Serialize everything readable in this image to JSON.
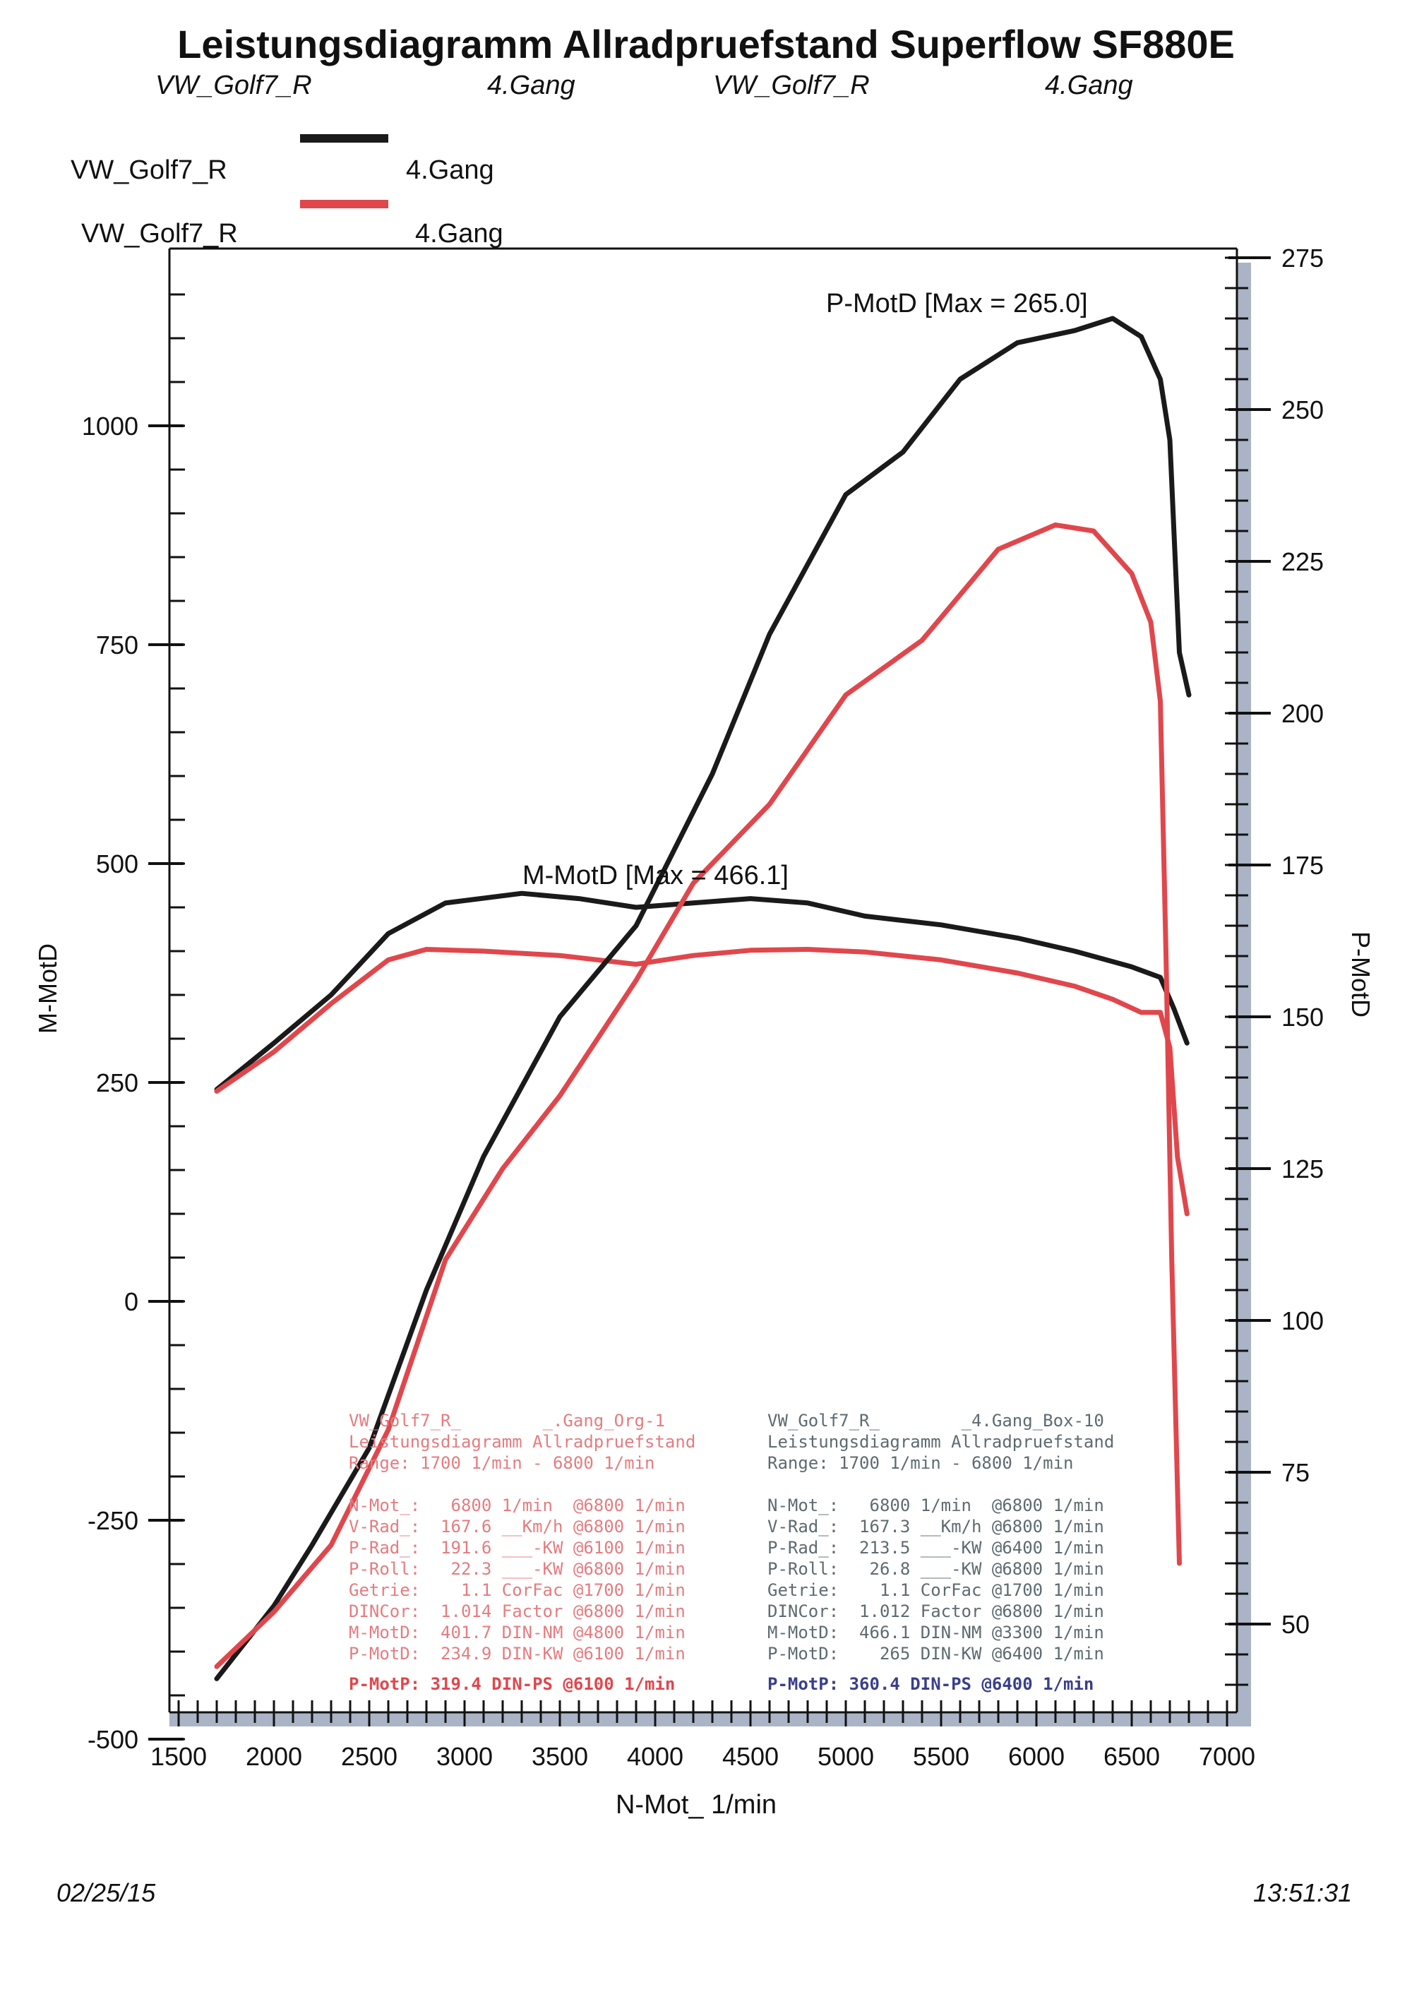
{
  "title": "Leistungsdiagramm Allradpruefstand Superflow SF880E",
  "subtitle": [
    "VW_Golf7_R",
    "4.Gang",
    "VW_Golf7_R",
    "4.Gang"
  ],
  "legend": [
    {
      "name": "VW_Golf7_R",
      "gear": "4.Gang",
      "color": "#1a1a1a"
    },
    {
      "name": "VW_Golf7_R",
      "gear": "4.Gang",
      "color": "#e0474c"
    }
  ],
  "chart_data": {
    "type": "line",
    "xlabel": "N-Mot_ 1/min",
    "ylabel_left": "M-MotD",
    "ylabel_right": "P-MotD",
    "xlim": [
      1500,
      7000
    ],
    "ylim_left": [
      -500,
      1250
    ],
    "ylim_right": [
      25,
      275
    ],
    "xticks": [
      "1500",
      "2000",
      "2500",
      "3000",
      "3500",
      "4000",
      "4500",
      "5000",
      "5500",
      "6000",
      "6500",
      "7000"
    ],
    "yticks_left": [
      "1000",
      "750",
      "500",
      "250",
      "0",
      "-250",
      "-500"
    ],
    "yticks_right": [
      "275",
      "250",
      "225",
      "200",
      "175",
      "150",
      "125",
      "100",
      "75",
      "50"
    ],
    "annotations": {
      "power_max": "P-MotD [Max = 265.0]",
      "torque_max": "M-MotD [Max = 466.1]"
    },
    "series": [
      {
        "color": "#1a1a1a",
        "axis": "left",
        "kind": "torque",
        "points": [
          [
            1700,
            242
          ],
          [
            2000,
            295
          ],
          [
            2300,
            350
          ],
          [
            2600,
            420
          ],
          [
            2900,
            455
          ],
          [
            3300,
            466
          ],
          [
            3600,
            460
          ],
          [
            3900,
            450
          ],
          [
            4200,
            455
          ],
          [
            4500,
            460
          ],
          [
            4800,
            455
          ],
          [
            5100,
            440
          ],
          [
            5500,
            430
          ],
          [
            5900,
            415
          ],
          [
            6200,
            400
          ],
          [
            6500,
            382
          ],
          [
            6650,
            370
          ],
          [
            6720,
            335
          ],
          [
            6790,
            295
          ]
        ]
      },
      {
        "color": "#e0474c",
        "axis": "left",
        "kind": "torque",
        "points": [
          [
            1700,
            240
          ],
          [
            2000,
            285
          ],
          [
            2300,
            340
          ],
          [
            2600,
            390
          ],
          [
            2800,
            402
          ],
          [
            3100,
            400
          ],
          [
            3500,
            395
          ],
          [
            3900,
            385
          ],
          [
            4200,
            395
          ],
          [
            4500,
            401
          ],
          [
            4800,
            402
          ],
          [
            5100,
            399
          ],
          [
            5500,
            390
          ],
          [
            5900,
            375
          ],
          [
            6200,
            360
          ],
          [
            6400,
            345
          ],
          [
            6550,
            330
          ],
          [
            6650,
            330
          ],
          [
            6700,
            290
          ],
          [
            6740,
            165
          ],
          [
            6790,
            100
          ]
        ]
      },
      {
        "color": "#1a1a1a",
        "axis": "right",
        "kind": "power",
        "points": [
          [
            1700,
            41
          ],
          [
            2000,
            53
          ],
          [
            2200,
            63
          ],
          [
            2500,
            79
          ],
          [
            2800,
            105
          ],
          [
            3100,
            127
          ],
          [
            3500,
            150
          ],
          [
            3900,
            165
          ],
          [
            4300,
            190
          ],
          [
            4600,
            213
          ],
          [
            5000,
            236
          ],
          [
            5300,
            243
          ],
          [
            5600,
            255
          ],
          [
            5900,
            261
          ],
          [
            6200,
            263
          ],
          [
            6400,
            265
          ],
          [
            6550,
            262
          ],
          [
            6650,
            255
          ],
          [
            6700,
            245
          ],
          [
            6750,
            210
          ],
          [
            6800,
            203
          ]
        ]
      },
      {
        "color": "#e0474c",
        "axis": "right",
        "kind": "power",
        "points": [
          [
            1700,
            43
          ],
          [
            2000,
            52
          ],
          [
            2300,
            63
          ],
          [
            2600,
            82
          ],
          [
            2900,
            110
          ],
          [
            3200,
            125
          ],
          [
            3500,
            137
          ],
          [
            3900,
            156
          ],
          [
            4200,
            172
          ],
          [
            4600,
            185
          ],
          [
            5000,
            203
          ],
          [
            5400,
            212
          ],
          [
            5800,
            227
          ],
          [
            6100,
            231
          ],
          [
            6300,
            230
          ],
          [
            6500,
            223
          ],
          [
            6600,
            215
          ],
          [
            6650,
            202
          ],
          [
            6680,
            160
          ],
          [
            6710,
            110
          ],
          [
            6750,
            60
          ]
        ]
      }
    ]
  },
  "info_left": {
    "header": [
      "VW_Golf7_R_        _.Gang_Org-1",
      "Leistungsdiagramm Allradpruefstand",
      "Range: 1700 1/min - 6800 1/min"
    ],
    "rows": [
      "N-Mot_:   6800 1/min  @6800 1/min",
      "V-Rad_:  167.6 __Km/h @6800 1/min",
      "P-Rad_:  191.6 ___-KW @6100 1/min",
      "P-Roll:   22.3 ___-KW @6800 1/min",
      "Getrie:    1.1 CorFac @1700 1/min",
      "DINCor:  1.014 Factor @6800 1/min",
      "M-MotD:  401.7 DIN-NM @4800 1/min",
      "P-MotD:  234.9 DIN-KW @6100 1/min"
    ],
    "summary": "P-MotP: 319.4 DIN-PS @6100 1/min"
  },
  "info_right": {
    "header": [
      "VW_Golf7_R_        _4.Gang_Box-10",
      "Leistungsdiagramm Allradpruefstand",
      "Range: 1700 1/min - 6800 1/min"
    ],
    "rows": [
      "N-Mot_:   6800 1/min  @6800 1/min",
      "V-Rad_:  167.3 __Km/h @6800 1/min",
      "P-Rad_:  213.5 ___-KW @6400 1/min",
      "P-Roll:   26.8 ___-KW @6800 1/min",
      "Getrie:    1.1 CorFac @1700 1/min",
      "DINCor:  1.012 Factor @6800 1/min",
      "M-MotD:  466.1 DIN-NM @3300 1/min",
      "P-MotD:    265 DIN-KW @6400 1/min"
    ],
    "summary": "P-MotP: 360.4 DIN-PS @6400 1/min"
  },
  "footer": {
    "date": "02/25/15",
    "time": "13:51:31"
  }
}
